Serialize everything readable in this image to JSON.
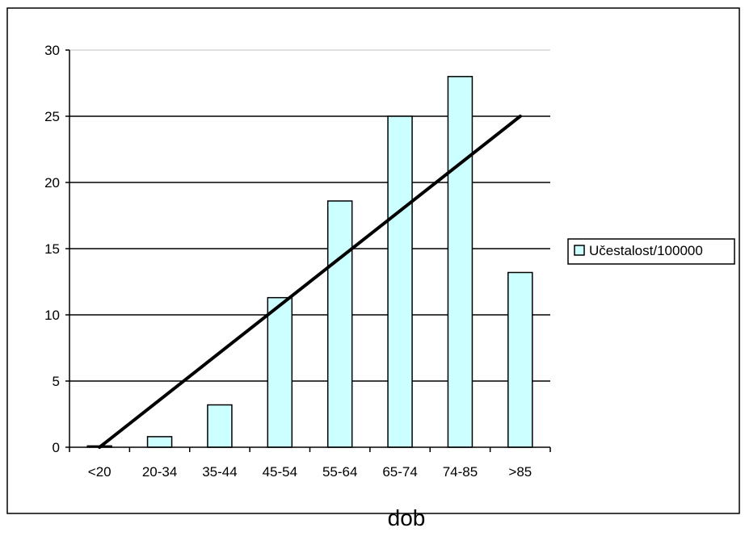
{
  "chart_data": {
    "type": "bar",
    "categories": [
      "<20",
      "20-34",
      "35-44",
      "45-54",
      "55-64",
      "65-74",
      "74-85",
      ">85"
    ],
    "series": [
      {
        "name": "Učestalost/100000",
        "values": [
          0.1,
          0.8,
          3.2,
          11.3,
          18.6,
          25,
          28,
          13.2
        ]
      }
    ],
    "trendline": {
      "type": "linear",
      "start": 0,
      "end": 25
    },
    "title": "",
    "xlabel": "dob",
    "ylabel": "",
    "ylim": [
      0,
      30
    ],
    "yticks": [
      0,
      5,
      10,
      15,
      20,
      25,
      30
    ],
    "grid": "horizontal",
    "legend_position": "right",
    "colors": {
      "bar_fill": "#ccffff",
      "bar_stroke": "#000000",
      "trendline": "#000000",
      "gridline": "#000000"
    }
  }
}
